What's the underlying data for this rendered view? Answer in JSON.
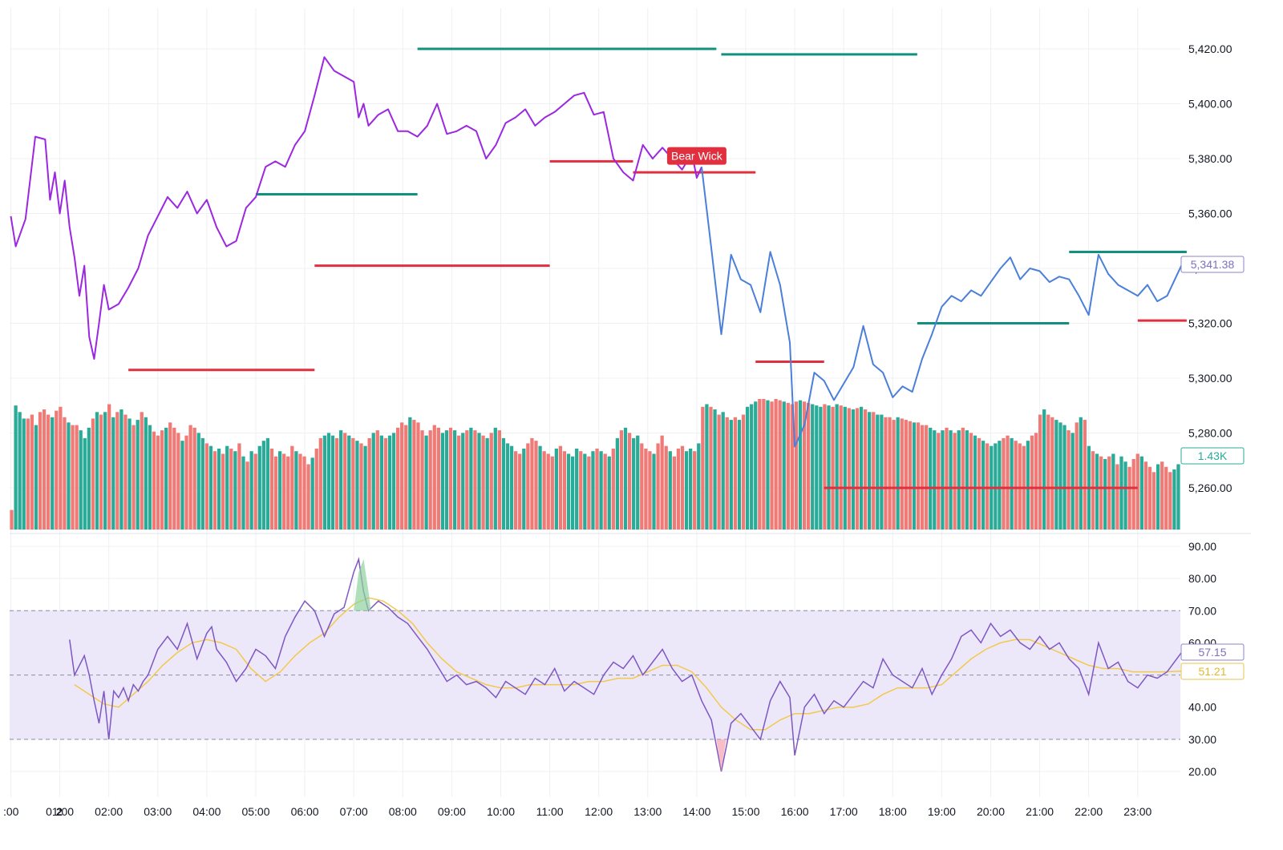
{
  "colors": {
    "line_purple": "#9c27e0",
    "line_blue": "#4b7fd9",
    "support_red": "#e0303f",
    "resistance_green": "#10917f",
    "vol_green": "#2aab98",
    "vol_red": "#ef7a76",
    "rsi_line": "#7e57c2",
    "rsi_ma": "#f2c94c",
    "rsi_band": "#ece8fa",
    "grid": "#eef0f3"
  },
  "chart_data": [
    {
      "type": "line",
      "title": "Price",
      "ylim": [
        5245,
        5430
      ],
      "yticks": [
        5260,
        5280,
        5300,
        5320,
        5340,
        5360,
        5380,
        5400,
        5420
      ],
      "ytick_labels": [
        "5,260.00",
        "5,280.00",
        "5,300.00",
        "5,320.00",
        "5,340.00",
        "5,360.00",
        "5,380.00",
        "5,400.00",
        "5,420.00"
      ],
      "x_range": [
        0,
        24
      ],
      "series": [
        {
          "name": "price-before-14",
          "color": "purple",
          "x": [
            0,
            0.1,
            0.3,
            0.5,
            0.7,
            0.8,
            0.9,
            1.0,
            1.1,
            1.2,
            1.3,
            1.4,
            1.5,
            1.6,
            1.7,
            1.8,
            1.9,
            2.0,
            2.2,
            2.4,
            2.6,
            2.8,
            3.0,
            3.2,
            3.4,
            3.6,
            3.8,
            4.0,
            4.2,
            4.4,
            4.6,
            4.8,
            5.0,
            5.2,
            5.4,
            5.6,
            5.8,
            6.0,
            6.2,
            6.4,
            6.6,
            6.8,
            7.0,
            7.1,
            7.2,
            7.3,
            7.5,
            7.7,
            7.9,
            8.1,
            8.3,
            8.5,
            8.7,
            8.9,
            9.1,
            9.3,
            9.5,
            9.7,
            9.9,
            10.1,
            10.3,
            10.5,
            10.7,
            10.9,
            11.1,
            11.3,
            11.5,
            11.7,
            11.9,
            12.1,
            12.3,
            12.5,
            12.7,
            12.9,
            13.1,
            13.3,
            13.5,
            13.7,
            13.9,
            14.0,
            14.1
          ],
          "y": [
            5359,
            5348,
            5358,
            5388,
            5387,
            5365,
            5375,
            5360,
            5372,
            5355,
            5344,
            5330,
            5341,
            5315,
            5307,
            5320,
            5334,
            5325,
            5327,
            5333,
            5340,
            5352,
            5359,
            5366,
            5362,
            5368,
            5360,
            5365,
            5355,
            5348,
            5350,
            5362,
            5366,
            5377,
            5379,
            5377,
            5385,
            5390,
            5403,
            5417,
            5412,
            5410,
            5408,
            5395,
            5400,
            5392,
            5396,
            5398,
            5390,
            5390,
            5388,
            5392,
            5400,
            5389,
            5390,
            5392,
            5390,
            5380,
            5385,
            5393,
            5395,
            5398,
            5392,
            5395,
            5397,
            5400,
            5403,
            5404,
            5396,
            5397,
            5380,
            5375,
            5372,
            5385,
            5380,
            5384,
            5380,
            5376,
            5382,
            5373,
            5377
          ]
        },
        {
          "name": "price-after-14",
          "color": "blue",
          "x": [
            14.1,
            14.3,
            14.5,
            14.7,
            14.9,
            15.1,
            15.3,
            15.5,
            15.7,
            15.9,
            16.0,
            16.2,
            16.4,
            16.6,
            16.8,
            17.0,
            17.2,
            17.4,
            17.6,
            17.8,
            18.0,
            18.2,
            18.4,
            18.6,
            18.8,
            19.0,
            19.2,
            19.4,
            19.6,
            19.8,
            20.0,
            20.2,
            20.4,
            20.6,
            20.8,
            21.0,
            21.2,
            21.4,
            21.6,
            21.8,
            22.0,
            22.2,
            22.4,
            22.6,
            22.8,
            23.0,
            23.2,
            23.4,
            23.6,
            23.9
          ],
          "y": [
            5377,
            5347,
            5316,
            5345,
            5336,
            5334,
            5324,
            5346,
            5334,
            5313,
            5275,
            5283,
            5302,
            5299,
            5292,
            5298,
            5304,
            5319,
            5305,
            5302,
            5293,
            5297,
            5295,
            5307,
            5316,
            5326,
            5330,
            5328,
            5332,
            5330,
            5335,
            5340,
            5344,
            5336,
            5340,
            5339,
            5335,
            5337,
            5336,
            5330,
            5323,
            5345,
            5338,
            5334,
            5332,
            5330,
            5334,
            5328,
            5330,
            5341.38
          ]
        }
      ],
      "resistance_levels": [
        {
          "from": 5.0,
          "to": 8.3,
          "value": 5367
        },
        {
          "from": 8.3,
          "to": 14.4,
          "value": 5420
        },
        {
          "from": 14.5,
          "to": 18.5,
          "value": 5418
        },
        {
          "from": 18.5,
          "to": 21.6,
          "value": 5320
        },
        {
          "from": 21.6,
          "to": 24.0,
          "value": 5346
        }
      ],
      "support_levels": [
        {
          "from": 2.4,
          "to": 6.2,
          "value": 5303
        },
        {
          "from": 6.2,
          "to": 11.0,
          "value": 5341
        },
        {
          "from": 11.0,
          "to": 12.7,
          "value": 5379
        },
        {
          "from": 12.7,
          "to": 15.2,
          "value": 5375
        },
        {
          "from": 15.2,
          "to": 16.6,
          "value": 5306
        },
        {
          "from": 16.6,
          "to": 23.0,
          "value": 5260
        },
        {
          "from": 23.0,
          "to": 24.0,
          "value": 5321
        }
      ],
      "annotations": [
        {
          "label": "Bear Wick",
          "x": 14.0,
          "y": 5381
        }
      ],
      "last_price_label": "5,341.38"
    },
    {
      "type": "bar",
      "title": "Volume",
      "volume_label": "1.43K",
      "series_heights_relative": [
        0.15,
        0.95,
        0.9,
        0.85,
        0.85,
        0.88,
        0.8,
        0.9,
        0.92,
        0.88,
        0.86,
        0.91,
        0.94,
        0.86,
        0.82,
        0.8,
        0.8,
        0.76,
        0.7,
        0.78,
        0.85,
        0.9,
        0.88,
        0.9,
        0.96,
        0.86,
        0.9,
        0.92,
        0.88,
        0.85,
        0.8,
        0.84,
        0.9,
        0.86,
        0.8,
        0.75,
        0.72,
        0.76,
        0.78,
        0.82,
        0.78,
        0.74,
        0.68,
        0.72,
        0.8,
        0.78,
        0.74,
        0.7,
        0.66,
        0.64,
        0.6,
        0.62,
        0.58,
        0.64,
        0.62,
        0.6,
        0.66,
        0.56,
        0.52,
        0.6,
        0.58,
        0.64,
        0.68,
        0.7,
        0.62,
        0.56,
        0.6,
        0.58,
        0.56,
        0.64,
        0.6,
        0.58,
        0.56,
        0.5,
        0.55,
        0.62,
        0.7,
        0.72,
        0.74,
        0.72,
        0.7,
        0.76,
        0.74,
        0.72,
        0.7,
        0.68,
        0.66,
        0.64,
        0.7,
        0.74,
        0.76,
        0.72,
        0.7,
        0.72,
        0.74,
        0.78,
        0.82,
        0.8,
        0.86,
        0.84,
        0.82,
        0.76,
        0.72,
        0.76,
        0.8,
        0.78,
        0.74,
        0.76,
        0.78,
        0.76,
        0.72,
        0.74,
        0.76,
        0.78,
        0.76,
        0.74,
        0.72,
        0.7,
        0.74,
        0.78,
        0.76,
        0.7,
        0.66,
        0.64,
        0.6,
        0.58,
        0.62,
        0.66,
        0.7,
        0.68,
        0.64,
        0.6,
        0.58,
        0.56,
        0.62,
        0.64,
        0.6,
        0.58,
        0.56,
        0.62,
        0.6,
        0.58,
        0.56,
        0.6,
        0.62,
        0.6,
        0.58,
        0.56,
        0.62,
        0.7,
        0.76,
        0.78,
        0.74,
        0.7,
        0.72,
        0.66,
        0.62,
        0.6,
        0.58,
        0.66,
        0.72,
        0.64,
        0.6,
        0.56,
        0.62,
        0.64,
        0.6,
        0.62,
        0.6,
        0.66,
        0.94,
        0.96,
        0.94,
        0.92,
        0.88,
        0.9,
        0.86,
        0.84,
        0.86,
        0.84,
        0.88,
        0.94,
        0.96,
        0.98,
        1.0,
        1.0,
        0.99,
        0.98,
        1.0,
        0.99,
        0.98,
        0.97,
        0.96,
        0.98,
        0.99,
        0.98,
        0.97,
        0.96,
        0.95,
        0.94,
        0.96,
        0.95,
        0.94,
        0.96,
        0.95,
        0.94,
        0.93,
        0.92,
        0.93,
        0.94,
        0.92,
        0.9,
        0.9,
        0.88,
        0.88,
        0.86,
        0.86,
        0.84,
        0.86,
        0.85,
        0.84,
        0.83,
        0.82,
        0.82,
        0.8,
        0.8,
        0.78,
        0.76,
        0.74,
        0.76,
        0.78,
        0.76,
        0.74,
        0.76,
        0.78,
        0.76,
        0.74,
        0.72,
        0.7,
        0.68,
        0.66,
        0.64,
        0.66,
        0.68,
        0.7,
        0.72,
        0.7,
        0.68,
        0.66,
        0.64,
        0.68,
        0.72,
        0.74,
        0.88,
        0.92,
        0.88,
        0.86,
        0.84,
        0.82,
        0.8,
        0.76,
        0.74,
        0.82,
        0.86,
        0.84,
        0.64,
        0.6,
        0.58,
        0.56,
        0.54,
        0.56,
        0.58,
        0.5,
        0.56,
        0.52,
        0.48,
        0.54,
        0.58,
        0.56,
        0.52,
        0.48,
        0.44,
        0.5,
        0.52,
        0.48,
        0.44,
        0.46,
        0.5
      ]
    },
    {
      "type": "line",
      "title": "RSI",
      "ylim": [
        15,
        95
      ],
      "yticks": [
        20,
        30,
        40,
        50,
        60,
        70,
        80,
        90
      ],
      "ytick_labels": [
        "20.00",
        "30.00",
        "40.00",
        "50.00",
        "60.00",
        "70.00",
        "80.00",
        "90.00"
      ],
      "overbought": 70,
      "oversold": 30,
      "rsi_value_label": "57.15",
      "rsi_ma_value_label": "51.21",
      "series": [
        {
          "name": "rsi",
          "x": [
            1.2,
            1.3,
            1.5,
            1.6,
            1.7,
            1.8,
            1.9,
            2.0,
            2.1,
            2.2,
            2.3,
            2.4,
            2.5,
            2.6,
            2.7,
            2.8,
            3.0,
            3.2,
            3.4,
            3.6,
            3.8,
            4.0,
            4.1,
            4.2,
            4.4,
            4.6,
            4.8,
            5.0,
            5.2,
            5.4,
            5.6,
            5.8,
            6.0,
            6.2,
            6.4,
            6.6,
            6.8,
            7.0,
            7.1,
            7.2,
            7.3,
            7.5,
            7.7,
            7.9,
            8.1,
            8.3,
            8.5,
            8.7,
            8.9,
            9.1,
            9.3,
            9.5,
            9.7,
            9.9,
            10.1,
            10.3,
            10.5,
            10.7,
            10.9,
            11.1,
            11.3,
            11.5,
            11.7,
            11.9,
            12.1,
            12.3,
            12.5,
            12.7,
            12.9,
            13.1,
            13.3,
            13.5,
            13.7,
            13.9,
            14.1,
            14.3,
            14.5,
            14.7,
            14.9,
            15.1,
            15.3,
            15.5,
            15.7,
            15.9,
            16.0,
            16.2,
            16.4,
            16.6,
            16.8,
            17.0,
            17.2,
            17.4,
            17.6,
            17.8,
            18.0,
            18.2,
            18.4,
            18.6,
            18.8,
            19.0,
            19.2,
            19.4,
            19.6,
            19.8,
            20.0,
            20.2,
            20.4,
            20.6,
            20.8,
            21.0,
            21.2,
            21.4,
            21.6,
            21.8,
            22.0,
            22.2,
            22.4,
            22.6,
            22.8,
            23.0,
            23.2,
            23.4,
            23.6,
            23.9
          ],
          "y": [
            61,
            50,
            56,
            50,
            42,
            35,
            45,
            30,
            45,
            43,
            46,
            42,
            47,
            45,
            48,
            50,
            58,
            62,
            58,
            66,
            55,
            63,
            65,
            58,
            54,
            48,
            52,
            58,
            56,
            52,
            62,
            68,
            73,
            70,
            62,
            69,
            71,
            82,
            86,
            76,
            70,
            73,
            71,
            68,
            66,
            62,
            58,
            53,
            48,
            50,
            47,
            48,
            46,
            43,
            48,
            46,
            44,
            49,
            47,
            52,
            45,
            48,
            46,
            44,
            50,
            54,
            52,
            56,
            50,
            54,
            58,
            52,
            48,
            50,
            42,
            36,
            20,
            35,
            38,
            34,
            30,
            42,
            48,
            43,
            25,
            40,
            44,
            38,
            42,
            40,
            44,
            48,
            46,
            55,
            50,
            48,
            46,
            52,
            44,
            50,
            55,
            62,
            64,
            60,
            66,
            62,
            64,
            60,
            58,
            62,
            58,
            60,
            55,
            52,
            44,
            60,
            52,
            54,
            48,
            46,
            50,
            49,
            51,
            57.15
          ]
        },
        {
          "name": "rsi-ma",
          "x": [
            1.3,
            1.6,
            1.9,
            2.2,
            2.5,
            2.8,
            3.1,
            3.4,
            3.7,
            4.0,
            4.3,
            4.6,
            4.9,
            5.2,
            5.5,
            5.8,
            6.1,
            6.4,
            6.7,
            7.0,
            7.3,
            7.6,
            7.9,
            8.2,
            8.5,
            8.8,
            9.1,
            9.4,
            9.7,
            10.0,
            10.3,
            10.6,
            10.9,
            11.2,
            11.5,
            11.8,
            12.1,
            12.4,
            12.7,
            13.0,
            13.3,
            13.6,
            13.9,
            14.2,
            14.5,
            14.8,
            15.1,
            15.4,
            15.7,
            16.0,
            16.3,
            16.6,
            16.9,
            17.2,
            17.5,
            17.8,
            18.1,
            18.4,
            18.7,
            19.0,
            19.3,
            19.6,
            19.9,
            20.2,
            20.5,
            20.8,
            21.1,
            21.4,
            21.7,
            22.0,
            22.3,
            22.6,
            22.9,
            23.2,
            23.5,
            23.9
          ],
          "y": [
            47,
            44,
            41,
            40,
            44,
            48,
            53,
            57,
            60,
            61,
            60,
            58,
            52,
            48,
            51,
            56,
            60,
            63,
            68,
            72,
            74,
            73,
            70,
            66,
            60,
            55,
            51,
            49,
            47,
            46,
            46,
            47,
            47,
            47,
            47,
            48,
            48,
            49,
            49,
            51,
            53,
            53,
            51,
            46,
            40,
            36,
            33,
            33,
            36,
            38,
            38,
            39,
            40,
            40,
            41,
            44,
            46,
            46,
            46,
            47,
            51,
            55,
            58,
            60,
            61,
            61,
            59,
            57,
            55,
            53,
            52,
            52,
            51,
            51,
            51,
            51.21
          ]
        }
      ]
    }
  ],
  "x_axis": {
    "ticks": [
      0,
      1,
      2,
      3,
      4,
      5,
      6,
      7,
      8,
      9,
      10,
      11,
      12,
      13,
      14,
      15,
      16,
      17,
      18,
      19,
      20,
      21,
      22,
      23
    ],
    "labels": [
      ":00",
      "01:00",
      "02:00",
      "03:00",
      "04:00",
      "05:00",
      "06:00",
      "07:00",
      "08:00",
      "09:00",
      "10:00",
      "11:00",
      "12:00",
      "13:00",
      "14:00",
      "15:00",
      "16:00",
      "17:00",
      "18:00",
      "19:00",
      "20:00",
      "21:00",
      "22:00",
      "23:00"
    ],
    "day_marker": "2"
  }
}
